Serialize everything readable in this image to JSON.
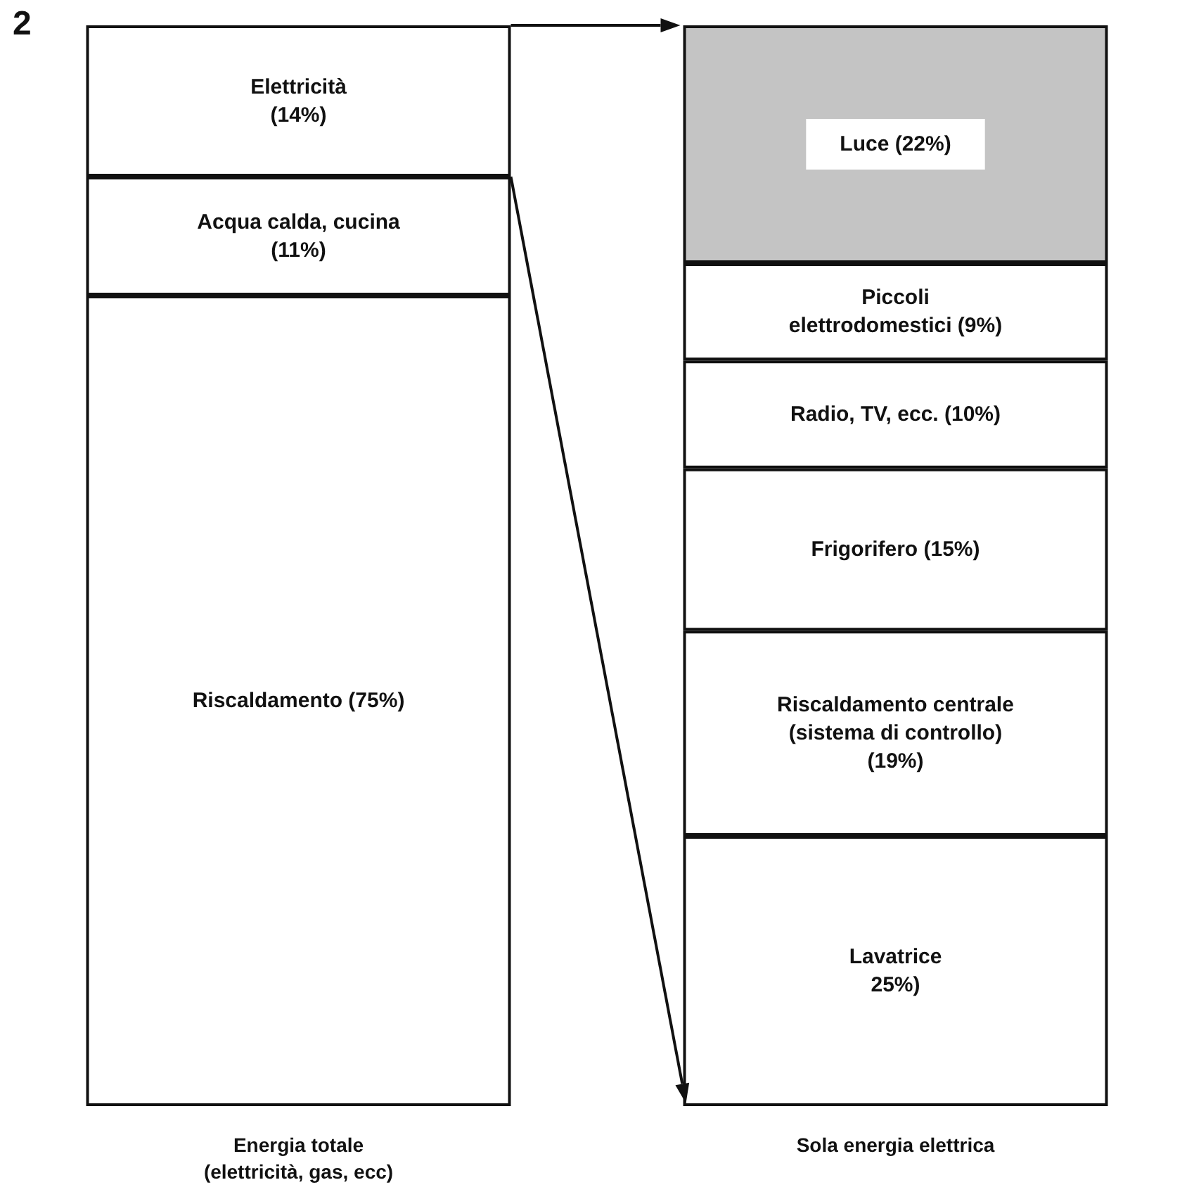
{
  "chart_data": {
    "type": "bar",
    "title": "2",
    "stacked": true,
    "tick_labels": "x",
    "categories": [
      "Energia totale\n(elettricità, gas, ecc)",
      "Sola energia elettrica"
    ],
    "series": [
      {
        "color": "#ffffff",
        "values": [
          75,
          null
        ],
        "value_labels": [
          "Riscaldamento (75%)",
          null
        ]
      },
      {
        "color": "#ffffff",
        "values": [
          11,
          null
        ],
        "value_labels": [
          "Acqua calda, cucina\n(11%)",
          null
        ]
      },
      {
        "color": "#ffffff",
        "values": [
          14,
          null
        ],
        "value_labels": [
          "Elettricità\n(14%)",
          null
        ]
      },
      {
        "color": "#ffffff",
        "values": [
          null,
          25
        ],
        "value_labels": [
          null,
          "Lavatrice\n25%)"
        ]
      },
      {
        "color": "#ffffff",
        "values": [
          null,
          19
        ],
        "value_labels": [
          null,
          "Riscaldamento centrale\n(sistema di controllo)\n(19%)"
        ]
      },
      {
        "color": "#ffffff",
        "values": [
          null,
          15
        ],
        "value_labels": [
          null,
          "Frigorifero (15%)"
        ]
      },
      {
        "color": "#ffffff",
        "values": [
          null,
          10
        ],
        "value_labels": [
          null,
          "Radio, TV, ecc. (10%)"
        ]
      },
      {
        "color": "#ffffff",
        "values": [
          null,
          9
        ],
        "value_labels": [
          null,
          "Piccoli\nelettrodomestici (9%)"
        ]
      },
      {
        "color": "#c4c4c4",
        "values": [
          null,
          22
        ],
        "value_labels": [
          null,
          "Luce (22%)"
        ]
      }
    ]
  }
}
